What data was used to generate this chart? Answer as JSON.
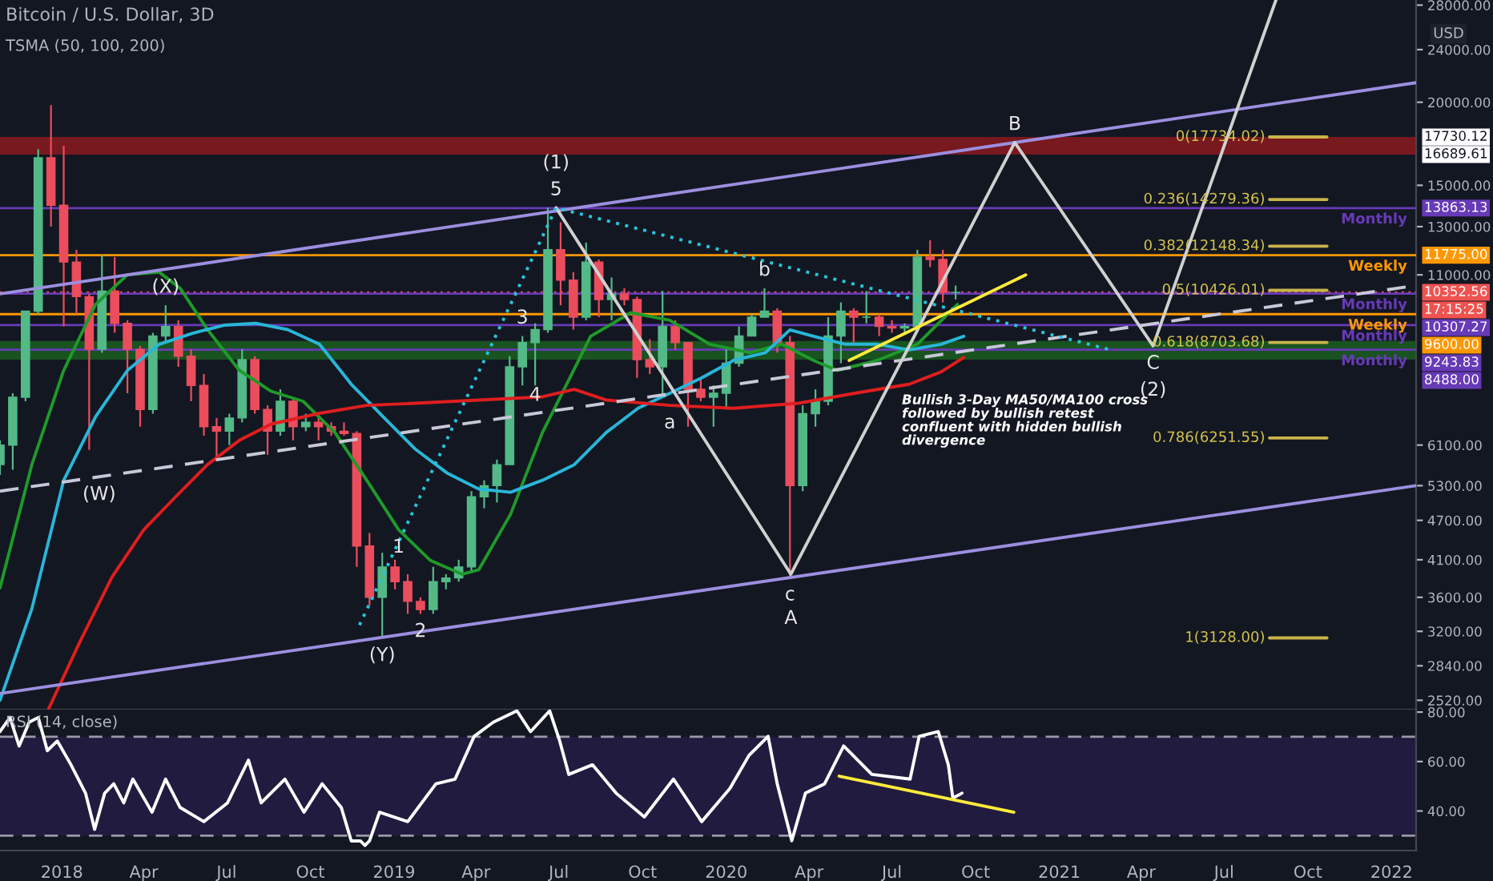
{
  "chart_data": [
    {
      "type": "candlestick",
      "title": "Bitcoin / U.S. Dollar, 3D",
      "subtitle": "TSMA (50, 100, 200)",
      "ylabel": "USD",
      "log": "y",
      "grid": false,
      "tick_labels": "y",
      "marker": "none",
      "xlim": [
        "2017-10-25",
        "2022-01-28"
      ],
      "ylim": [
        2440,
        28500
      ],
      "yticks": [
        {
          "value": 28000,
          "label": "28000.00"
        },
        {
          "value": 24000,
          "label": "24000.00"
        },
        {
          "value": 20000,
          "label": "20000.00"
        },
        {
          "value": 15000,
          "label": "15000.00"
        },
        {
          "value": 13000,
          "label": "13000.00"
        },
        {
          "value": 11000,
          "label": "11000.00"
        },
        {
          "value": 6100,
          "label": "6100.00"
        },
        {
          "value": 5300,
          "label": "5300.00"
        },
        {
          "value": 4700,
          "label": "4700.00"
        },
        {
          "value": 4100,
          "label": "4100.00"
        },
        {
          "value": 3600,
          "label": "3600.00"
        },
        {
          "value": 3200,
          "label": "3200.00"
        },
        {
          "value": 2840,
          "label": "2840.00"
        },
        {
          "value": 2520,
          "label": "2520.00"
        },
        {
          "value": 17730.12,
          "label": "17730.12"
        },
        {
          "value": 16689.61,
          "label": "16689.61"
        },
        {
          "value": 13863.13,
          "label": "13863.13"
        },
        {
          "value": 11775.0,
          "label": "11775.00"
        },
        {
          "value": 10352.56,
          "label": "10352.56"
        }
      ],
      "x": [
        "2017-10-25",
        "2017-11-08",
        "2017-11-22",
        "2017-12-06",
        "2017-12-20",
        "2018-01-03",
        "2018-01-17",
        "2018-01-31",
        "2018-02-14",
        "2018-02-28",
        "2018-03-14",
        "2018-03-28",
        "2018-04-11",
        "2018-04-25",
        "2018-05-09",
        "2018-05-23",
        "2018-06-06",
        "2018-06-20",
        "2018-07-04",
        "2018-07-18",
        "2018-08-01",
        "2018-08-15",
        "2018-08-29",
        "2018-09-12",
        "2018-09-26",
        "2018-10-10",
        "2018-10-24",
        "2018-11-07",
        "2018-11-21",
        "2018-12-05",
        "2018-12-19",
        "2019-01-02",
        "2019-01-16",
        "2019-01-30",
        "2019-02-13",
        "2019-02-27",
        "2019-03-13",
        "2019-03-27",
        "2019-04-10",
        "2019-04-24",
        "2019-05-08",
        "2019-05-22",
        "2019-06-05",
        "2019-06-19",
        "2019-07-03",
        "2019-07-17",
        "2019-07-31",
        "2019-08-14",
        "2019-08-28",
        "2019-09-11",
        "2019-09-25",
        "2019-10-09",
        "2019-10-23",
        "2019-11-06",
        "2019-11-20",
        "2019-12-04",
        "2019-12-18",
        "2020-01-01",
        "2020-01-15",
        "2020-01-29",
        "2020-02-12",
        "2020-02-26",
        "2020-03-11",
        "2020-03-25",
        "2020-04-08",
        "2020-04-22",
        "2020-05-06",
        "2020-05-20",
        "2020-06-03",
        "2020-06-17",
        "2020-07-01",
        "2020-07-15",
        "2020-07-29",
        "2020-08-12",
        "2020-08-26",
        "2020-09-09"
      ],
      "ohlc": [
        [
          5700,
          6200,
          5500,
          6100
        ],
        [
          6100,
          7300,
          5600,
          7200
        ],
        [
          7200,
          9700,
          7100,
          9700
        ],
        [
          9700,
          17000,
          9600,
          16500
        ],
        [
          16500,
          19800,
          13000,
          14000
        ],
        [
          14000,
          17200,
          9200,
          11500
        ],
        [
          11500,
          12000,
          9600,
          10200
        ],
        [
          10200,
          10300,
          6000,
          8500
        ],
        [
          8500,
          11800,
          8400,
          10400
        ],
        [
          10400,
          11700,
          9000,
          9300
        ],
        [
          9300,
          9400,
          7300,
          8500
        ],
        [
          8500,
          8600,
          6500,
          6900
        ],
        [
          6900,
          9000,
          6800,
          8900
        ],
        [
          8900,
          9900,
          8700,
          9200
        ],
        [
          9200,
          9400,
          8000,
          8300
        ],
        [
          8300,
          8500,
          7100,
          7500
        ],
        [
          7500,
          7800,
          6300,
          6500
        ],
        [
          6500,
          6700,
          5800,
          6400
        ],
        [
          6400,
          6800,
          6100,
          6700
        ],
        [
          6700,
          8500,
          6600,
          8200
        ],
        [
          8200,
          8300,
          6800,
          6900
        ],
        [
          6900,
          7000,
          5900,
          6400
        ],
        [
          6400,
          7400,
          6300,
          7100
        ],
        [
          7100,
          7200,
          6200,
          6500
        ],
        [
          6500,
          6800,
          6400,
          6600
        ],
        [
          6600,
          6700,
          6200,
          6500
        ],
        [
          6500,
          6600,
          6300,
          6400
        ],
        [
          6400,
          6600,
          6300,
          6350
        ],
        [
          6350,
          6400,
          4000,
          4300
        ],
        [
          4300,
          4500,
          3500,
          3600
        ],
        [
          3600,
          4200,
          3128,
          4000
        ],
        [
          4000,
          4100,
          3700,
          3800
        ],
        [
          3800,
          3900,
          3400,
          3550
        ],
        [
          3550,
          3600,
          3400,
          3450
        ],
        [
          3450,
          4000,
          3400,
          3800
        ],
        [
          3800,
          3900,
          3700,
          3850
        ],
        [
          3850,
          4100,
          3800,
          4000
        ],
        [
          4000,
          5200,
          3950,
          5100
        ],
        [
          5100,
          5400,
          4900,
          5300
        ],
        [
          5300,
          5800,
          5000,
          5700
        ],
        [
          5700,
          8300,
          5700,
          8000
        ],
        [
          8000,
          8900,
          7500,
          8700
        ],
        [
          8700,
          9300,
          7500,
          9100
        ],
        [
          9100,
          13880,
          9000,
          12000
        ],
        [
          12000,
          13200,
          9900,
          10800
        ],
        [
          10800,
          11100,
          9100,
          9500
        ],
        [
          9500,
          12300,
          9400,
          11500
        ],
        [
          11500,
          11600,
          9500,
          10100
        ],
        [
          10100,
          10900,
          9400,
          10300
        ],
        [
          10300,
          10500,
          9900,
          10100
        ],
        [
          10100,
          10200,
          7700,
          8200
        ],
        [
          8200,
          8800,
          7800,
          8000
        ],
        [
          8000,
          10400,
          7300,
          9200
        ],
        [
          9200,
          9400,
          8500,
          8700
        ],
        [
          8700,
          8700,
          6500,
          7400
        ],
        [
          7400,
          7700,
          7100,
          7200
        ],
        [
          7200,
          7500,
          6500,
          7300
        ],
        [
          7300,
          8500,
          6900,
          8100
        ],
        [
          8100,
          9200,
          8000,
          8900
        ],
        [
          8900,
          9600,
          8900,
          9500
        ],
        [
          9500,
          10500,
          9500,
          9700
        ],
        [
          9700,
          9800,
          8400,
          8700
        ],
        [
          8700,
          8900,
          3858,
          5300
        ],
        [
          5300,
          7000,
          5200,
          6800
        ],
        [
          6800,
          7400,
          6500,
          7100
        ],
        [
          7100,
          9500,
          7000,
          8900
        ],
        [
          8900,
          10000,
          8100,
          9700
        ],
        [
          9700,
          9800,
          8700,
          9500
        ],
        [
          9500,
          10400,
          9300,
          9500
        ],
        [
          9500,
          9600,
          8900,
          9200
        ],
        [
          9200,
          9400,
          9000,
          9150
        ],
        [
          9150,
          9300,
          9000,
          9200
        ],
        [
          9200,
          12000,
          9200,
          11700
        ],
        [
          11700,
          12400,
          11300,
          11600
        ],
        [
          11600,
          12000,
          10000,
          10350
        ],
        [
          10350,
          10600,
          10100,
          10352.56
        ]
      ],
      "series": [
        {
          "type": "line",
          "color": "#1e9a2a",
          "x": [
            "2017-10-25",
            "2017-11-29",
            "2018-01-03",
            "2018-02-07",
            "2018-03-14",
            "2018-04-18",
            "2018-05-11",
            "2018-06-10",
            "2018-07-15",
            "2018-08-19",
            "2018-09-23",
            "2018-10-28",
            "2018-12-02",
            "2019-01-06",
            "2019-02-10",
            "2019-03-17",
            "2019-04-04",
            "2019-05-09",
            "2019-06-13",
            "2019-08-05",
            "2019-09-18",
            "2019-10-31",
            "2019-12-14",
            "2020-01-27",
            "2020-03-02",
            "2020-04-06",
            "2020-05-02",
            "2020-06-15",
            "2020-07-29",
            "2020-09-11"
          ],
          "values": [
            3720,
            5700,
            7900,
            9930,
            11000,
            11100,
            10500,
            9100,
            7900,
            7350,
            7100,
            6370,
            5400,
            4550,
            4090,
            3900,
            3960,
            4800,
            6370,
            8890,
            9650,
            9400,
            8650,
            8400,
            8650,
            8180,
            7900,
            8180,
            8650,
            9930
          ]
        },
        {
          "type": "line",
          "color": "#29b6d8",
          "x": [
            "2017-10-25",
            "2017-11-29",
            "2018-01-03",
            "2018-02-07",
            "2018-03-14",
            "2018-04-18",
            "2018-05-24",
            "2018-06-28",
            "2018-08-02",
            "2018-09-06",
            "2018-10-11",
            "2018-11-15",
            "2018-12-20",
            "2019-01-24",
            "2019-02-28",
            "2019-04-04",
            "2019-05-09",
            "2019-06-13",
            "2019-07-18",
            "2019-08-22",
            "2019-09-26",
            "2019-10-31",
            "2019-12-05",
            "2020-01-09",
            "2020-02-13",
            "2020-03-11",
            "2020-04-06",
            "2020-05-11",
            "2020-06-15",
            "2020-07-20",
            "2020-08-24",
            "2020-09-18"
          ],
          "values": [
            2520,
            3460,
            5400,
            6730,
            7900,
            8650,
            8980,
            9240,
            9300,
            9100,
            8650,
            7530,
            6730,
            6020,
            5540,
            5240,
            5180,
            5400,
            5700,
            6370,
            6930,
            7300,
            7700,
            8180,
            8400,
            9090,
            8890,
            8650,
            8650,
            8480,
            8650,
            8890
          ]
        },
        {
          "type": "line",
          "color": "#e01e1e",
          "x": [
            "2017-12-17",
            "2018-01-21",
            "2018-02-25",
            "2018-04-01",
            "2018-05-06",
            "2018-06-10",
            "2018-07-15",
            "2018-08-19",
            "2018-10-11",
            "2018-12-02",
            "2019-01-24",
            "2019-04-04",
            "2019-06-13",
            "2019-07-18",
            "2019-08-22",
            "2019-10-31",
            "2020-01-09",
            "2020-03-20",
            "2020-05-29",
            "2020-07-20",
            "2020-08-24",
            "2020-09-18"
          ],
          "values": [
            2440,
            3090,
            3860,
            4550,
            5100,
            5700,
            6200,
            6560,
            6810,
            7000,
            7050,
            7130,
            7210,
            7400,
            7130,
            7000,
            6930,
            7050,
            7330,
            7530,
            7860,
            8260
          ]
        },
        {
          "type": "line",
          "color": "#9c8fe0",
          "x": [
            "2017-10-25",
            "2022-01-28"
          ],
          "values": [
            10300,
            21400
          ]
        },
        {
          "type": "line",
          "color": "#9c8fe0",
          "x": [
            "2017-10-25",
            "2022-01-28"
          ],
          "values": [
            2580,
            5300
          ]
        },
        {
          "type": "line",
          "color": "#c8c8d8",
          "line_style": "dashed",
          "x": [
            "2017-10-25",
            "2022-01-28"
          ],
          "values": [
            5200,
            10600
          ]
        },
        {
          "type": "line",
          "color": "#d0d0d0",
          "x": [
            "2019-06-28",
            "2020-03-12",
            "2020-11-13",
            "2021-04-14",
            "2021-08-27"
          ],
          "values": [
            13880,
            3900,
            17400,
            8600,
            28500
          ]
        },
        {
          "type": "line",
          "color": "#26c6da",
          "line_style": "dotted",
          "x": [
            "2018-11-24",
            "2019-06-28",
            "2021-02-24"
          ],
          "values": [
            3270,
            13880,
            8500
          ]
        },
        {
          "type": "line",
          "color": "#ffeb3b",
          "x": [
            "2020-05-15",
            "2020-11-25"
          ],
          "values": [
            8180,
            11000
          ]
        },
        {
          "type": "line",
          "color": "#c9b34a",
          "x": [
            "2021-08-20",
            "2021-10-22"
          ],
          "values": [
            17734.02,
            17734.02
          ]
        },
        {
          "type": "line",
          "color": "#c9b34a",
          "x": [
            "2021-08-20",
            "2021-10-22"
          ],
          "values": [
            14279.36,
            14279.36
          ]
        },
        {
          "type": "line",
          "color": "#c9b34a",
          "x": [
            "2021-08-20",
            "2021-10-22"
          ],
          "values": [
            12148.34,
            12148.34
          ]
        },
        {
          "type": "line",
          "color": "#c9b34a",
          "x": [
            "2021-08-20",
            "2021-10-22"
          ],
          "values": [
            10426.01,
            10426.01
          ]
        },
        {
          "type": "line",
          "color": "#c9b34a",
          "x": [
            "2021-08-20",
            "2021-10-22"
          ],
          "values": [
            8703.68,
            8703.68
          ]
        },
        {
          "type": "line",
          "color": "#c9b34a",
          "x": [
            "2021-08-20",
            "2021-10-22"
          ],
          "values": [
            6251.55,
            6251.55
          ]
        },
        {
          "type": "line",
          "color": "#c9b34a",
          "x": [
            "2021-08-20",
            "2021-10-22"
          ],
          "values": [
            3128.0,
            3128.0
          ]
        }
      ],
      "bands": [
        {
          "axis": "y",
          "from": 16689.61,
          "to": 17730.12,
          "color": "#8b1a1f"
        },
        {
          "axis": "y",
          "from": 8200,
          "to": 8750,
          "color": "#1b5e20"
        }
      ],
      "ref_lines": [
        {
          "axis": "y",
          "value": 13863.13,
          "label": "Monthly",
          "color": "#673ab7"
        },
        {
          "axis": "y",
          "value": 11775.0,
          "label": "Weekly",
          "color": "#ff9800"
        },
        {
          "axis": "y",
          "value": 10352.56,
          "label": null,
          "color": "#ef5350",
          "line_style": "dotted"
        },
        {
          "axis": "y",
          "value": 10307.27,
          "label": "Monthly",
          "color": "#673ab7"
        },
        {
          "axis": "y",
          "value": 9600.0,
          "label": "Weekly",
          "color": "#ff9800"
        },
        {
          "axis": "y",
          "value": 9243.83,
          "label": "Monthly",
          "color": "#673ab7"
        },
        {
          "axis": "y",
          "value": 8488.0,
          "label": "Monthly",
          "color": "#673ab7"
        }
      ],
      "annotations": [
        "17:15:25",
        "10307.27",
        "9600.00",
        "9243.83",
        "8488.00",
        {
          "text": "0(17734.02)",
          "x": "2021-08-20",
          "y": 17734.02
        },
        {
          "text": "0.236(14279.36)",
          "x": "2021-08-20",
          "y": 14279.36
        },
        {
          "text": "0.382(12148.34)",
          "x": "2021-08-20",
          "y": 12148.34
        },
        {
          "text": "0.5(10426.01)",
          "x": "2021-08-20",
          "y": 10426.01
        },
        {
          "text": "0.618(8703.68)",
          "x": "2021-08-20",
          "y": 8703.68
        },
        {
          "text": "0.786(6251.55)",
          "x": "2021-08-20",
          "y": 6251.55
        },
        {
          "text": "1(3128.00)",
          "x": "2021-08-20",
          "y": 3128.0
        },
        {
          "text": "5",
          "x": "2019-06-28",
          "y": 13880
        },
        {
          "text": "(1)",
          "x": "2019-06-28",
          "y": 13880
        },
        {
          "text": "3",
          "x": "2019-05-22",
          "y": 8900
        },
        {
          "text": "4",
          "x": "2019-06-05",
          "y": 6808
        },
        {
          "text": "1",
          "x": "2019-01-06",
          "y": 4550
        },
        {
          "text": "2",
          "x": "2019-01-30",
          "y": 3400
        },
        {
          "text": "(W)",
          "x": "2018-02-11",
          "y": 5464
        },
        {
          "text": "(X)",
          "x": "2018-04-25",
          "y": 9900
        },
        {
          "text": "(Y)",
          "x": "2018-12-19",
          "y": 3128
        },
        {
          "text": "a",
          "x": "2019-10-31",
          "y": 7000
        },
        {
          "text": "b",
          "x": "2020-02-12",
          "y": 10500
        },
        {
          "text": "c",
          "x": "2020-03-11",
          "y": 3858
        },
        {
          "text": "A",
          "x": "2020-03-12",
          "y": 3900
        },
        {
          "text": "B",
          "x": "2020-11-13",
          "y": 17400
        },
        {
          "text": "C",
          "x": "2021-04-14",
          "y": 8600
        },
        {
          "text": "(2)",
          "x": "2021-04-14",
          "y": 8600
        },
        "Bullish 3-Day MA50/MA100 cross\nfollowed by bullish retest\nconfluent with hidden bullish\ndivergence"
      ]
    },
    {
      "type": "line",
      "title": "RSI (14, close)",
      "grid": false,
      "marker": "none",
      "xlim": [
        "2017-10-25",
        "2022-01-28"
      ],
      "ylim": [
        24,
        81
      ],
      "yticks": [
        {
          "value": 80,
          "label": "80.00"
        },
        {
          "value": 60,
          "label": "60.00"
        },
        {
          "value": 40,
          "label": "40.00"
        }
      ],
      "xticks": [
        {
          "value": "2018-01-01",
          "label": "2018"
        },
        {
          "value": "2018-04-01",
          "label": "Apr"
        },
        {
          "value": "2018-07-01",
          "label": "Jul"
        },
        {
          "value": "2018-10-01",
          "label": "Oct"
        },
        {
          "value": "2019-01-01",
          "label": "2019"
        },
        {
          "value": "2019-04-01",
          "label": "Apr"
        },
        {
          "value": "2019-07-01",
          "label": "Jul"
        },
        {
          "value": "2019-10-01",
          "label": "Oct"
        },
        {
          "value": "2020-01-01",
          "label": "2020"
        },
        {
          "value": "2020-04-01",
          "label": "Apr"
        },
        {
          "value": "2020-07-01",
          "label": "Jul"
        },
        {
          "value": "2020-10-01",
          "label": "Oct"
        },
        {
          "value": "2021-01-01",
          "label": "2021"
        },
        {
          "value": "2021-04-01",
          "label": "Apr"
        },
        {
          "value": "2021-07-01",
          "label": "Jul"
        },
        {
          "value": "2021-10-01",
          "label": "Oct"
        },
        {
          "value": "2022-01-01",
          "label": "2022"
        }
      ],
      "series": [
        {
          "color": "#ffffff",
          "x": [
            "2017-10-25",
            "2017-11-05",
            "2017-11-15",
            "2017-11-26",
            "2017-12-06",
            "2017-12-16",
            "2017-12-27",
            "2018-01-11",
            "2018-01-27",
            "2018-02-06",
            "2018-02-17",
            "2018-02-27",
            "2018-03-10",
            "2018-03-20",
            "2018-04-10",
            "2018-04-25",
            "2018-05-11",
            "2018-06-06",
            "2018-07-02",
            "2018-07-25",
            "2018-08-08",
            "2018-09-03",
            "2018-09-24",
            "2018-10-14",
            "2018-11-04",
            "2018-11-15",
            "2018-11-25",
            "2018-11-30",
            "2018-12-05",
            "2018-12-16",
            "2019-01-16",
            "2019-02-16",
            "2019-03-09",
            "2019-03-30",
            "2019-04-20",
            "2019-05-16",
            "2019-05-31",
            "2019-06-21",
            "2019-07-02",
            "2019-07-12",
            "2019-08-07",
            "2019-09-02",
            "2019-10-03",
            "2019-11-04",
            "2019-12-05",
            "2020-01-05",
            "2020-01-26",
            "2020-02-16",
            "2020-02-26",
            "2020-03-13",
            "2020-03-28",
            "2020-04-18",
            "2020-05-09",
            "2020-06-09",
            "2020-07-21",
            "2020-07-31",
            "2020-08-21",
            "2020-09-01",
            "2020-09-06",
            "2020-09-16"
          ],
          "values": [
            72.1,
            77.8,
            66.3,
            75.9,
            77.8,
            64.4,
            68.3,
            58.7,
            47.2,
            32.6,
            47.2,
            51,
            43.3,
            52.9,
            39.5,
            52.9,
            41.4,
            35.7,
            43.3,
            60.6,
            43.3,
            52.9,
            39.5,
            51,
            41.4,
            27.9,
            27.9,
            26.1,
            27.9,
            39.5,
            35.7,
            51,
            52.9,
            70.2,
            75.9,
            80.5,
            72.1,
            80.5,
            68.3,
            54.8,
            58.7,
            47.2,
            37.6,
            52.9,
            35.7,
            49.1,
            62.5,
            70.2,
            51,
            28,
            47.2,
            51,
            66.3,
            54.8,
            52.9,
            70.2,
            72.1,
            58.7,
            45.2,
            47.2
          ]
        },
        {
          "color": "#ffeb3b",
          "x": [
            "2020-05-04",
            "2020-11-12"
          ],
          "values": [
            54.1,
            39.5
          ]
        }
      ],
      "bands": [
        {
          "axis": "y",
          "from": 30,
          "to": 70,
          "color": "#241c45"
        }
      ],
      "ref_lines": [
        {
          "axis": "y",
          "value": 70,
          "label": null,
          "color": "#9a9aa8",
          "line_style": "dashed"
        },
        {
          "axis": "y",
          "value": 30,
          "label": null,
          "color": "#9a9aa8",
          "line_style": "dashed"
        }
      ]
    }
  ]
}
